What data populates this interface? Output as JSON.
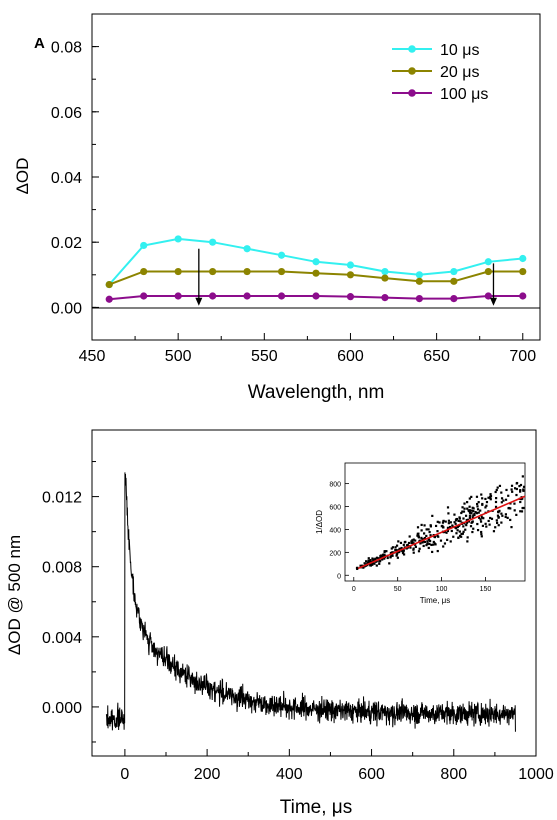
{
  "chart_data": [
    {
      "panel_label": "A",
      "type": "line",
      "xlabel": "Wavelength, nm",
      "ylabel": "ΔOD",
      "xlim": [
        450,
        710
      ],
      "ylim": [
        -0.01,
        0.09
      ],
      "xticks": [
        "450",
        "500",
        "550",
        "600",
        "650",
        "700"
      ],
      "yticks": [
        "0.00",
        "0.02",
        "0.04",
        "0.06",
        "0.08"
      ],
      "legend_position": "top-right",
      "zero_line": true,
      "x": [
        460,
        480,
        500,
        520,
        540,
        560,
        580,
        600,
        620,
        640,
        660,
        680,
        700
      ],
      "series": [
        {
          "name": "10 μs",
          "color": "#33f0f0",
          "values": [
            0.007,
            0.019,
            0.021,
            0.02,
            0.018,
            0.016,
            0.014,
            0.013,
            0.011,
            0.01,
            0.011,
            0.014,
            0.015
          ]
        },
        {
          "name": "20 μs",
          "color": "#8c8400",
          "values": [
            0.007,
            0.011,
            0.011,
            0.011,
            0.011,
            0.011,
            0.0105,
            0.01,
            0.009,
            0.008,
            0.008,
            0.011,
            0.011
          ]
        },
        {
          "name": "100 μs",
          "color": "#8c0d8c",
          "values": [
            0.0025,
            0.0035,
            0.0035,
            0.0035,
            0.0035,
            0.0035,
            0.0035,
            0.0033,
            0.003,
            0.0027,
            0.0027,
            0.0035,
            0.0035
          ]
        }
      ],
      "arrows": [
        {
          "x": 512,
          "y_from": 0.018,
          "y_to": 0.0005
        },
        {
          "x": 683,
          "y_from": 0.0135,
          "y_to": 0.0005
        }
      ]
    },
    {
      "type": "line",
      "xlabel": "Time, μs",
      "ylabel": "ΔOD @ 500 nm",
      "xlim": [
        -80,
        1000
      ],
      "ylim": [
        -0.0028,
        0.0158
      ],
      "xticks": [
        "0",
        "200",
        "400",
        "600",
        "800",
        "1000"
      ],
      "yticks": [
        "0.000",
        "0.004",
        "0.008",
        "0.012"
      ],
      "series": [
        {
          "name": "",
          "color": "#000000",
          "trace": {
            "x_start": -45,
            "x_end": 950,
            "rise_at": 0,
            "pre_level": -0.0007,
            "peak": 0.0142,
            "decay_terms": [
              {
                "amplitude": 0.0085,
                "tau": 15
              },
              {
                "amplitude": 0.0059,
                "tau": 150
              }
            ],
            "final_level": -0.0004
          }
        }
      ]
    },
    {
      "type": "scatter",
      "inset": true,
      "xlabel": "Time, μs",
      "ylabel": "1/ΔOD",
      "xlim": [
        -10,
        195
      ],
      "ylim": [
        -50,
        980
      ],
      "xticks": [
        "0",
        "50",
        "100",
        "150"
      ],
      "yticks": [
        "0",
        "200",
        "400",
        "600",
        "800"
      ],
      "fit_line": {
        "color": "#dd1111",
        "x": [
          5,
          195
        ],
        "y": [
          60,
          690
        ]
      },
      "series": [
        {
          "name": "",
          "color": "#000000",
          "model": {
            "intercept": 45,
            "slope": 3.4,
            "x_from": 3,
            "x_to": 195
          }
        }
      ]
    }
  ]
}
